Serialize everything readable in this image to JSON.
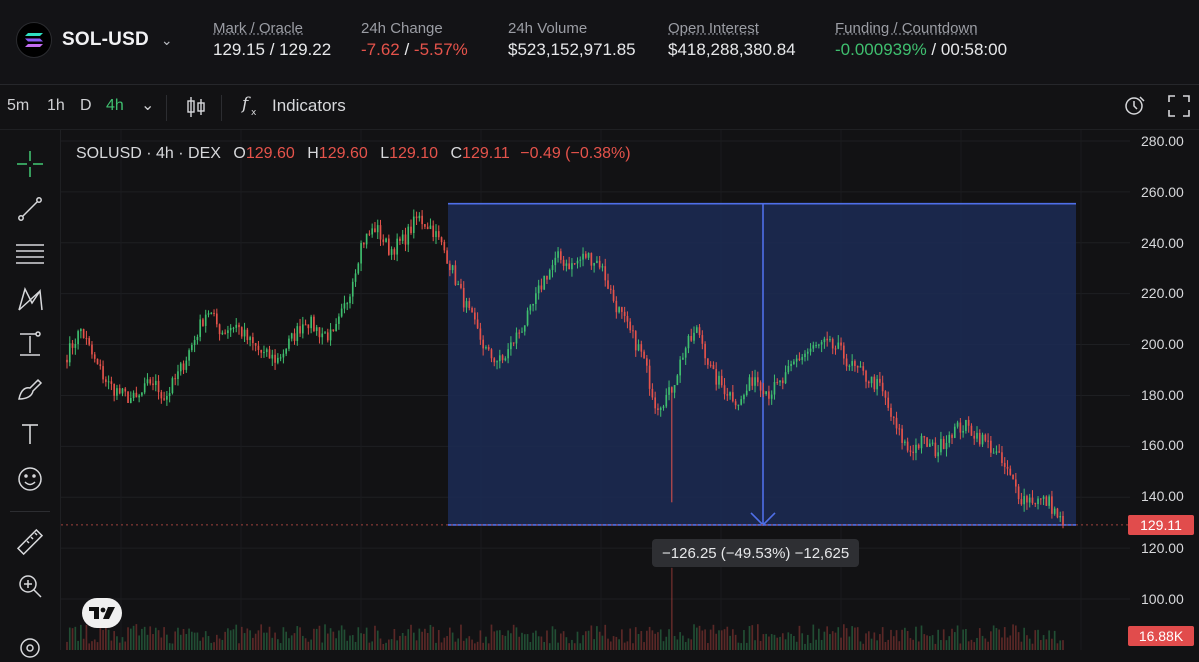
{
  "header": {
    "pair": "SOL-USD",
    "stats": [
      {
        "label": "Mark / Oracle",
        "value": "129.15 / 129.22"
      },
      {
        "label": "24h Change",
        "value_a": "-7.62",
        "value_sep": " / ",
        "value_b": "-5.57%"
      },
      {
        "label": "24h Volume",
        "value": "$523,152,971.85"
      },
      {
        "label": "Open Interest",
        "value": "$418,288,380.84"
      },
      {
        "label": "Funding / Countdown",
        "value_a": "-0.000939%",
        "value_sep": " / ",
        "value_b": "00:58:00"
      }
    ]
  },
  "toolbar": {
    "timeframes": [
      "5m",
      "1h",
      "D",
      "4h"
    ],
    "active_timeframe": "4h",
    "indicators_label": "Indicators"
  },
  "legend": {
    "symbol": "SOLUSD · 4h · DEX",
    "o_label": "O",
    "o": "129.60",
    "h_label": "H",
    "h": "129.60",
    "l_label": "L",
    "l": "129.10",
    "c_label": "C",
    "c": "129.11",
    "change": "−0.49 (−0.38%)"
  },
  "axis": {
    "ticks": [
      "280.00",
      "260.00",
      "240.00",
      "220.00",
      "200.00",
      "180.00",
      "160.00",
      "140.00",
      "120.00",
      "100.00"
    ],
    "last_price": "129.11",
    "volume_tag": "16.88K"
  },
  "measure": {
    "label": "−126.25 (−49.53%) −12,625"
  },
  "colors": {
    "up": "#3fbf6f",
    "down": "#e5534b",
    "measure_fill": "#1c2b55",
    "measure_line": "#4f6fe8",
    "background": "#121214"
  },
  "chart_data": {
    "type": "candlestick",
    "interval": "4h",
    "ylim": [
      100,
      280
    ],
    "series": [
      {
        "name": "SOLUSD",
        "close_path": [
          196,
          206,
          193,
          184,
          180,
          178,
          186,
          179,
          189,
          201,
          214,
          205,
          208,
          201,
          196,
          194,
          202,
          210,
          205,
          203,
          218,
          240,
          246,
          237,
          241,
          250,
          246,
          236,
          221,
          208,
          196,
          193,
          203,
          212,
          226,
          234,
          231,
          235,
          232,
          217,
          206,
          196,
          176,
          181,
          198,
          206,
          188,
          182,
          177,
          188,
          181,
          185,
          194,
          198,
          200,
          198,
          191,
          187,
          183,
          168,
          158,
          162,
          158,
          166,
          168,
          164,
          159,
          150,
          140,
          139,
          138,
          129.11
        ]
      }
    ],
    "measure": {
      "from_price": 255.36,
      "to_price": 129.11,
      "change": -126.25,
      "change_pct": -49.53,
      "ticks": -12625
    }
  }
}
